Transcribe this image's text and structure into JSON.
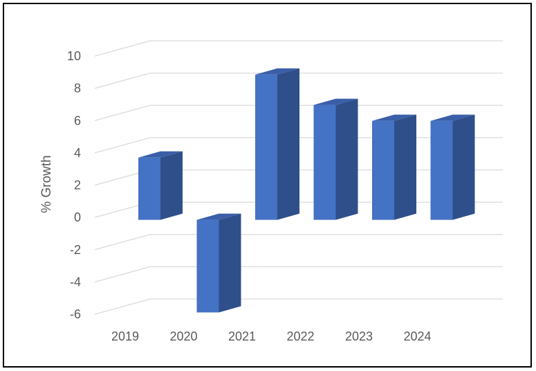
{
  "chart_data": {
    "type": "bar",
    "style": "3d-column",
    "categories": [
      "2019",
      "2020",
      "2021",
      "2022",
      "2023",
      "2024"
    ],
    "values": [
      3.9,
      -5.8,
      9.1,
      7.2,
      6.2,
      6.2
    ],
    "title": "",
    "xlabel": "",
    "ylabel": "% Growth",
    "ylim": [
      -6,
      10
    ],
    "yticks": [
      "10",
      "8",
      "6",
      "4",
      "2",
      "0",
      "-2",
      "-4",
      "-6"
    ],
    "grid": true,
    "legend": "none",
    "colors": {
      "bar_front": "#4472C4",
      "bar_side": "#2F4F8A",
      "bar_top": "#3A5FA8",
      "gridline": "#D9D9D9",
      "text": "#595959"
    }
  }
}
